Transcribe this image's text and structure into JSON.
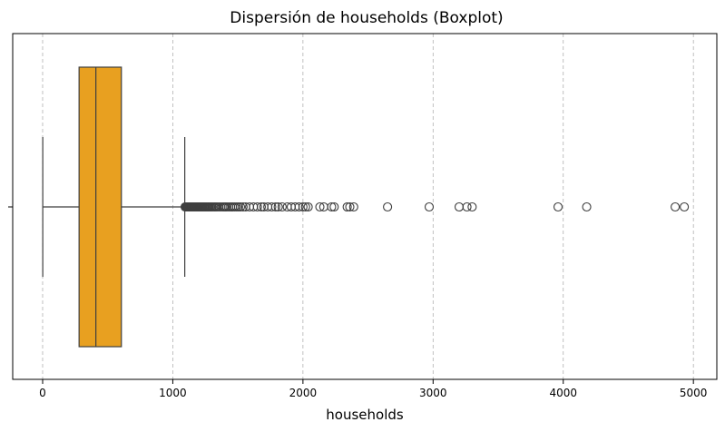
{
  "chart_data": {
    "type": "boxplot",
    "title": "Dispersión de households (Boxplot)",
    "xlabel": "households",
    "ylabel": "",
    "orientation": "horizontal",
    "xlim": [
      -230,
      5180
    ],
    "xticks": [
      0,
      1000,
      2000,
      3000,
      4000,
      5000
    ],
    "xtick_labels": [
      "0",
      "1000",
      "2000",
      "3000",
      "4000",
      "5000"
    ],
    "grid": "x-dashed",
    "box_color": "#e8a020",
    "stats": {
      "whisker_low": 1,
      "q1": 280,
      "median": 409,
      "q3": 605,
      "whisker_high": 1092
    },
    "outliers": [
      1095,
      1100,
      1105,
      1110,
      1115,
      1120,
      1125,
      1130,
      1135,
      1140,
      1145,
      1150,
      1155,
      1160,
      1165,
      1170,
      1175,
      1180,
      1185,
      1190,
      1195,
      1200,
      1206,
      1212,
      1218,
      1224,
      1230,
      1237,
      1244,
      1251,
      1258,
      1266,
      1274,
      1282,
      1290,
      1300,
      1310,
      1320,
      1330,
      1340,
      1355,
      1370,
      1385,
      1395,
      1405,
      1415,
      1430,
      1445,
      1460,
      1475,
      1490,
      1505,
      1520,
      1540,
      1560,
      1590,
      1620,
      1650,
      1680,
      1700,
      1730,
      1760,
      1790,
      1810,
      1840,
      1880,
      1910,
      1940,
      1970,
      2000,
      2020,
      2040,
      2130,
      2160,
      2220,
      2240,
      2340,
      2360,
      2390,
      2650,
      2970,
      3200,
      3260,
      3300,
      3960,
      4180,
      4860,
      4930
    ]
  }
}
